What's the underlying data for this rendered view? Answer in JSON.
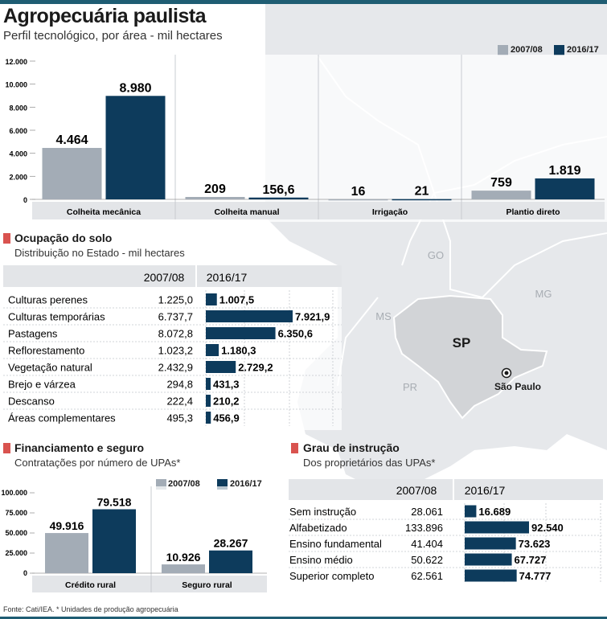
{
  "header": {
    "title": "Agropecuária paulista",
    "subtitle": "Perfil tecnológico, por área - mil hectares"
  },
  "colors": {
    "series_2007_08": "#a3acb6",
    "series_2016_17": "#0d3b5c",
    "accent": "#d9534f",
    "rule": "#1f5d73",
    "map_land": "#e6e8eb",
    "map_sp": "#d2d4d7"
  },
  "legend": {
    "series_a": "2007/08",
    "series_b": "2016/17"
  },
  "map": {
    "labels": [
      "GO",
      "MG",
      "MS",
      "PR",
      "SP"
    ],
    "capital": "São Paulo",
    "capital_icon": "city-marker-icon"
  },
  "ocupacao": {
    "title": "Ocupação do solo",
    "subtitle": "Distribuição no Estado - mil hectares"
  },
  "financiamento": {
    "title": "Financiamento e seguro",
    "subtitle": "Contratações por número de UPAs*"
  },
  "instrucao": {
    "title": "Grau de instrução",
    "subtitle": "Dos proprietários das UPAs*"
  },
  "footer": "Fonte: Cati/IEA. * Unidades de produção agropecuária",
  "chart_data": [
    {
      "type": "bar",
      "categories": [
        "Colheita mecânica",
        "Colheita manual",
        "Irrigação",
        "Plantio direto"
      ],
      "series": [
        {
          "name": "2007/08",
          "values": [
            4464,
            209,
            16,
            759
          ],
          "labels": [
            "4.464",
            "209",
            "16",
            "759"
          ]
        },
        {
          "name": "2016/17",
          "values": [
            8980,
            156.6,
            21,
            1819
          ],
          "labels": [
            "8.980",
            "156,6",
            "21",
            "1.819"
          ]
        }
      ],
      "ylim": [
        0,
        12000
      ],
      "yticks": [
        "0",
        "2.000",
        "4.000",
        "6.000",
        "8.000",
        "10.000",
        "12.000"
      ]
    },
    {
      "type": "table",
      "columns": [
        "2007/08",
        "2016/17"
      ],
      "rows": [
        "Culturas perenes",
        "Culturas temporárias",
        "Pastagens",
        "Reflorestamento",
        "Vegetação natural",
        "Brejo e várzea",
        "Descanso",
        "Áreas complementares"
      ],
      "values_a": [
        "1.225,0",
        "6.737,7",
        "8.072,8",
        "1.023,2",
        "2.432,9",
        "294,8",
        "222,4",
        "495,3"
      ],
      "values_b": [
        1007.5,
        7921.9,
        6350.6,
        1180.3,
        2729.2,
        431.3,
        210.2,
        456.9
      ],
      "labels_b": [
        "1.007,5",
        "7.921,9",
        "6.350,6",
        "1.180,3",
        "2.729,2",
        "431,3",
        "210,2",
        "456,9"
      ]
    },
    {
      "type": "bar",
      "categories": [
        "Crédito rural",
        "Seguro rural"
      ],
      "series": [
        {
          "name": "2007/08",
          "values": [
            49916,
            10926
          ],
          "labels": [
            "49.916",
            "10.926"
          ]
        },
        {
          "name": "2016/17",
          "values": [
            79518,
            28267
          ],
          "labels": [
            "79.518",
            "28.267"
          ]
        }
      ],
      "ylim": [
        0,
        100000
      ],
      "yticks": [
        "0",
        "25.000",
        "50.000",
        "75.000",
        "100.000"
      ]
    },
    {
      "type": "table",
      "columns": [
        "2007/08",
        "2016/17"
      ],
      "rows": [
        "Sem instrução",
        "Alfabetizado",
        "Ensino fundamental",
        "Ensino médio",
        "Superior completo"
      ],
      "values_a": [
        "28.061",
        "133.896",
        "41.404",
        "50.622",
        "62.561"
      ],
      "values_b": [
        16689,
        92540,
        73623,
        67727,
        74777
      ],
      "labels_b": [
        "16.689",
        "92.540",
        "73.623",
        "67.727",
        "74.777"
      ]
    }
  ]
}
